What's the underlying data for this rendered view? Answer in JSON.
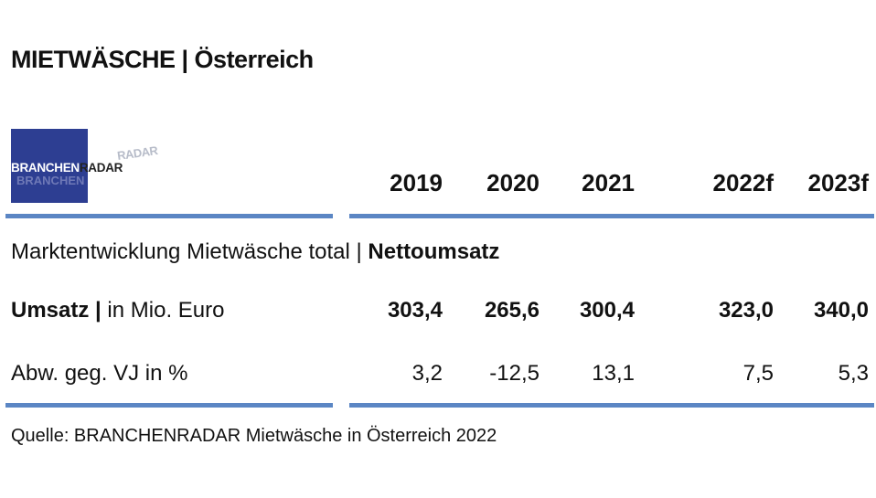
{
  "title": "MIETWÄSCHE | Österreich",
  "logo": {
    "part_a": "BRANCHEN",
    "part_b": "RADAR",
    "ghost": "RADAR",
    "ghost2": "BRANCHEN"
  },
  "subtitle": {
    "normal": "Marktentwicklung Mietwäsche total | ",
    "bold": "Nettoumsatz"
  },
  "source": "Quelle: BRANCHENRADAR Mietwäsche in Österreich 2022",
  "colors": {
    "logo_bg": "#2d3e92",
    "rule": "#5b86c4"
  },
  "chart_data": {
    "type": "table",
    "columns": [
      "2019",
      "2020",
      "2021",
      "2022f",
      "2023f"
    ],
    "rows": [
      {
        "label_bold": "Umsatz |",
        "label_normal": " in Mio. Euro",
        "values": [
          "303,4",
          "265,6",
          "300,4",
          "323,0",
          "340,0"
        ]
      },
      {
        "label_bold": "",
        "label_normal": "Abw. geg. VJ in %",
        "values": [
          "3,2",
          "-12,5",
          "13,1",
          "7,5",
          "5,3"
        ]
      }
    ]
  }
}
